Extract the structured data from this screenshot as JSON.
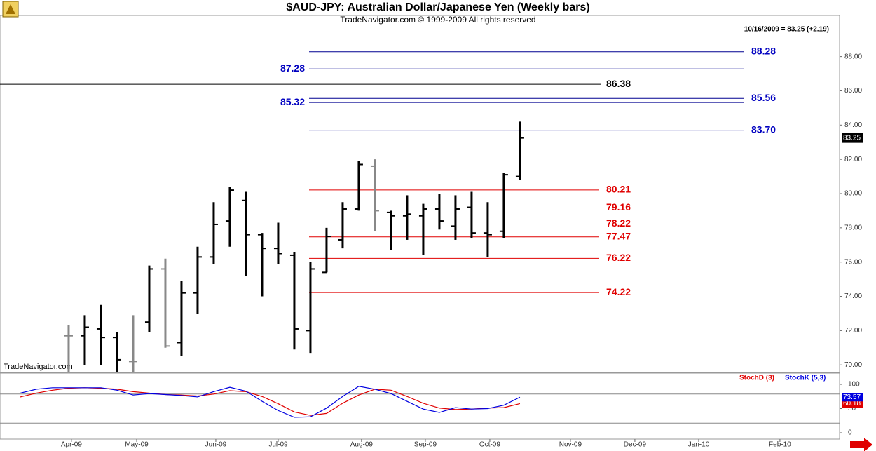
{
  "header": {
    "title": "$AUD-JPY:  Australian Dollar/Japanese Yen  (Weekly bars)",
    "subtitle": "TradeNavigator.com © 1999-2009 All rights reserved",
    "last_quote": "10/16/2009 = 83.25 (+2.19)",
    "watermark": "TradeNavigator.com"
  },
  "chart_data": [
    {
      "type": "ohlc",
      "x": [
        0,
        1,
        2,
        3,
        4,
        5,
        6,
        7,
        8,
        9,
        10,
        11,
        12,
        13,
        14,
        15,
        16,
        17,
        18,
        19,
        20,
        21,
        22,
        23,
        24,
        25,
        26,
        27,
        28
      ],
      "open": [
        71.7,
        71.7,
        72.1,
        71.6,
        70.2,
        72.5,
        75.6,
        71.3,
        74.2,
        76.3,
        78.4,
        79.6,
        77.6,
        76.8,
        76.4,
        72.0,
        75.4,
        77.3,
        79.1,
        81.6,
        78.9,
        78.7,
        78.7,
        79.1,
        78.1,
        79.2,
        77.7,
        77.8,
        81.0
      ],
      "high": [
        72.3,
        72.9,
        73.5,
        71.9,
        72.9,
        75.8,
        76.2,
        74.9,
        76.9,
        79.5,
        80.4,
        80.1,
        77.7,
        78.3,
        76.6,
        76.0,
        78.0,
        79.5,
        81.9,
        82.0,
        79.0,
        79.9,
        79.4,
        80.0,
        79.9,
        80.1,
        79.5,
        81.2,
        84.2
      ],
      "low": [
        69.6,
        70.0,
        70.0,
        69.6,
        69.6,
        71.9,
        71.0,
        70.5,
        73.0,
        75.9,
        76.9,
        75.2,
        74.0,
        75.9,
        70.9,
        70.7,
        75.4,
        76.8,
        79.0,
        77.8,
        76.7,
        77.3,
        76.4,
        77.9,
        77.3,
        77.4,
        76.3,
        77.4,
        80.8
      ],
      "close": [
        71.7,
        72.2,
        71.6,
        70.3,
        70.2,
        75.6,
        71.1,
        74.2,
        76.3,
        78.2,
        80.2,
        77.6,
        76.8,
        76.5,
        72.1,
        75.6,
        77.5,
        79.1,
        81.7,
        79.0,
        78.7,
        78.8,
        79.1,
        78.4,
        79.1,
        77.7,
        77.6,
        81.1,
        83.25
      ],
      "colors": [
        "#888888",
        "#000000",
        "#000000",
        "#000000",
        "#888888",
        "#000000",
        "#888888",
        "#000000",
        "#000000",
        "#000000",
        "#000000",
        "#000000",
        "#000000",
        "#000000",
        "#000000",
        "#000000",
        "#000000",
        "#000000",
        "#000000",
        "#888888",
        "#000000",
        "#000000",
        "#000000",
        "#000000",
        "#000000",
        "#000000",
        "#000000",
        "#000000",
        "#000000"
      ],
      "levels": [
        {
          "value": 88.28,
          "color": "#0000c0"
        },
        {
          "value": 87.28,
          "color": "#0000c0"
        },
        {
          "value": 86.38,
          "color": "#000000"
        },
        {
          "value": 85.56,
          "color": "#0000c0"
        },
        {
          "value": 85.32,
          "color": "#0000c0"
        },
        {
          "value": 83.7,
          "label": "83.70",
          "color": "#0000c0"
        },
        {
          "value": 80.21,
          "color": "#e00000"
        },
        {
          "value": 79.16,
          "color": "#e00000"
        },
        {
          "value": 78.22,
          "color": "#e00000"
        },
        {
          "value": 77.47,
          "color": "#e00000"
        },
        {
          "value": 76.22,
          "color": "#e00000"
        },
        {
          "value": 74.22,
          "color": "#e00000"
        }
      ],
      "xlim": [
        -4.26,
        47.83
      ],
      "xticks": [
        {
          "value": 0.17,
          "label": "Apr-09"
        },
        {
          "value": 4.22,
          "label": "May-09"
        },
        {
          "value": 9.13,
          "label": "Jun-09"
        },
        {
          "value": 13.0,
          "label": "Jul-09"
        },
        {
          "value": 18.17,
          "label": "Aug-09"
        },
        {
          "value": 22.13,
          "label": "Sep-09"
        },
        {
          "value": 26.13,
          "label": "Oct-09"
        },
        {
          "value": 31.13,
          "label": "Nov-09"
        },
        {
          "value": 35.13,
          "label": "Dec-09"
        },
        {
          "value": 39.09,
          "label": "Jan-10"
        },
        {
          "value": 44.13,
          "label": "Feb-10"
        }
      ],
      "ylim": [
        69.6,
        90.4
      ],
      "yticks": [
        {
          "value": 70,
          "label": "70.00"
        },
        {
          "value": 72,
          "label": "72.00"
        },
        {
          "value": 74,
          "label": "74.00"
        },
        {
          "value": 76,
          "label": "76.00"
        },
        {
          "value": 78,
          "label": "78.00"
        },
        {
          "value": 80,
          "label": "80.00"
        },
        {
          "value": 82,
          "label": "82.00"
        },
        {
          "value": 84,
          "label": "84.00"
        },
        {
          "value": 86,
          "label": "86.00"
        },
        {
          "value": 88,
          "label": "88.00"
        }
      ]
    },
    {
      "type": "line",
      "x": [
        -3,
        -2,
        -1,
        0,
        1,
        2,
        3,
        4,
        5,
        6,
        7,
        8,
        9,
        10,
        11,
        12,
        13,
        14,
        15,
        16,
        17,
        18,
        19,
        20,
        21,
        22,
        23,
        24,
        25,
        26,
        27,
        28
      ],
      "series": [
        {
          "name": "StochD (3)",
          "color": "#e00000",
          "values": [
            74,
            82,
            88,
            92,
            93,
            92,
            90,
            85,
            82,
            79,
            78,
            76,
            80,
            87,
            85,
            75,
            60,
            43,
            36,
            40,
            61,
            78,
            90,
            88,
            75,
            61,
            51,
            48,
            49,
            51,
            52,
            60.18
          ]
        },
        {
          "name": "StochK (5,3)",
          "color": "#0000e0",
          "values": [
            82,
            90,
            93,
            93,
            93,
            93,
            88,
            78,
            81,
            79,
            77,
            74,
            85,
            94,
            86,
            65,
            46,
            32,
            33,
            51,
            75,
            96,
            90,
            81,
            65,
            49,
            42,
            52,
            49,
            50,
            57,
            73.57
          ]
        }
      ],
      "ref_lines": [
        80,
        20
      ],
      "ylim": [
        -11.6,
        123.2
      ],
      "yticks": [
        0,
        50,
        100
      ]
    }
  ]
}
